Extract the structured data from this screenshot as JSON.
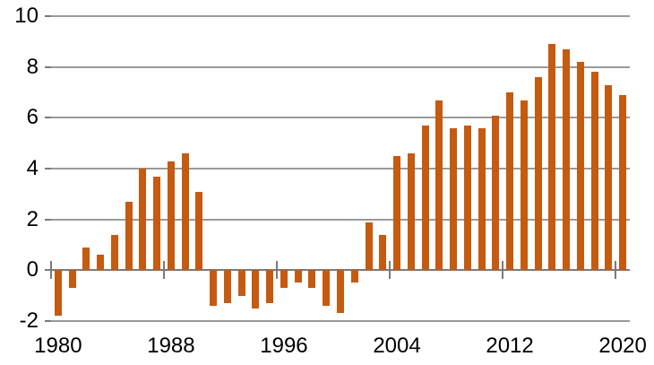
{
  "chart_data": {
    "type": "bar",
    "title": "",
    "xlabel": "",
    "ylabel": "",
    "categories": [
      1980,
      1981,
      1982,
      1983,
      1984,
      1985,
      1986,
      1987,
      1988,
      1989,
      1990,
      1991,
      1992,
      1993,
      1994,
      1995,
      1996,
      1997,
      1998,
      1999,
      2000,
      2001,
      2002,
      2003,
      2004,
      2005,
      2006,
      2007,
      2008,
      2009,
      2010,
      2011,
      2012,
      2013,
      2014,
      2015,
      2016,
      2017,
      2018,
      2019,
      2020
    ],
    "values": [
      -1.8,
      -0.7,
      0.9,
      0.6,
      1.4,
      2.7,
      4.0,
      3.7,
      4.3,
      4.6,
      3.1,
      -1.4,
      -1.3,
      -1.0,
      -1.5,
      -1.3,
      -0.7,
      -0.5,
      -0.7,
      -1.4,
      -1.7,
      -0.5,
      1.9,
      1.4,
      4.5,
      4.6,
      5.7,
      6.7,
      5.6,
      5.7,
      5.6,
      6.1,
      7.0,
      6.7,
      7.6,
      8.9,
      8.7,
      8.2,
      7.8,
      7.3,
      6.9
    ],
    "ylim": [
      -2,
      10
    ],
    "y_ticks": [
      10,
      8,
      6,
      4,
      2,
      0,
      -2
    ],
    "y_tick_labels": [
      "10",
      "8",
      "6",
      "4",
      "2",
      "0",
      "-2"
    ],
    "x_tick_indices": [
      0,
      8,
      16,
      24,
      32,
      40
    ],
    "x_tick_labels": [
      "1980",
      "1988",
      "1996",
      "2004",
      "2012",
      "2020"
    ],
    "grid": "horizontal",
    "legend": "none",
    "colors": {
      "bar": "#C55A11",
      "gridline": "#9A9A9A",
      "zero_axis": "#7A7A7A",
      "tick": "#7A7A7A",
      "text": "#000000",
      "background": "#FFFFFF"
    }
  }
}
